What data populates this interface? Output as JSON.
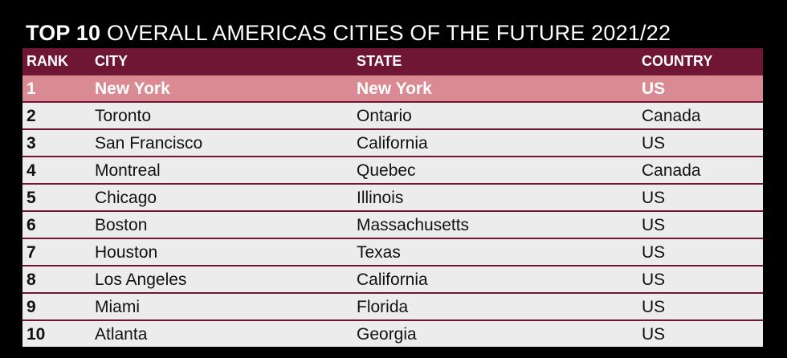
{
  "title": {
    "bold": "TOP 10",
    "rest": "OVERALL AMERICAS CITIES OF THE FUTURE 2021/22"
  },
  "table": {
    "headers": {
      "rank": "RANK",
      "city": "CITY",
      "state": "STATE",
      "country": "COUNTRY"
    },
    "highlight_color": "#d98a92",
    "header_color": "#6e1634",
    "rows": [
      {
        "rank": "1",
        "city": "New York",
        "state": "New York",
        "country": "US"
      },
      {
        "rank": "2",
        "city": "Toronto",
        "state": "Ontario",
        "country": "Canada"
      },
      {
        "rank": "3",
        "city": "San Francisco",
        "state": "California",
        "country": "US"
      },
      {
        "rank": "4",
        "city": "Montreal",
        "state": "Quebec",
        "country": "Canada"
      },
      {
        "rank": "5",
        "city": "Chicago",
        "state": "Illinois",
        "country": "US"
      },
      {
        "rank": "6",
        "city": "Boston",
        "state": "Massachusetts",
        "country": "US"
      },
      {
        "rank": "7",
        "city": "Houston",
        "state": "Texas",
        "country": "US"
      },
      {
        "rank": "8",
        "city": "Los Angeles",
        "state": "California",
        "country": "US"
      },
      {
        "rank": "9",
        "city": "Miami",
        "state": "Florida",
        "country": "US"
      },
      {
        "rank": "10",
        "city": "Atlanta",
        "state": "Georgia",
        "country": "US"
      }
    ]
  }
}
